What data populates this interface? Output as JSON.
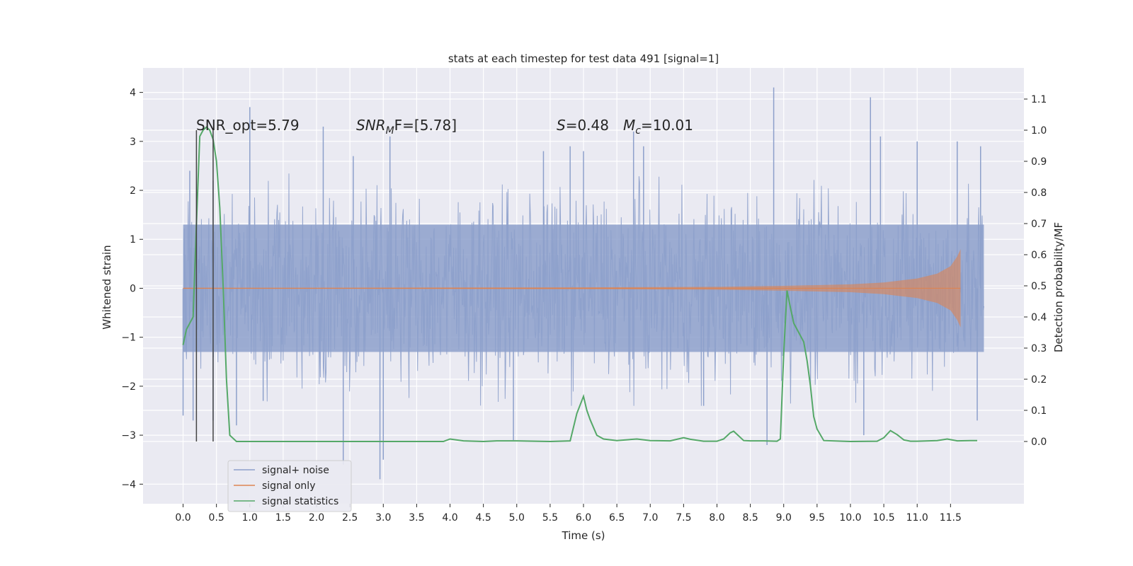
{
  "chart_data": {
    "type": "line",
    "title": "stats at each timestep for test data 491 [signal=1]",
    "xlabel": "Time (s)",
    "ylabel": "Whitened strain",
    "ylabel_right": "Detection probability/MF",
    "xlim": [
      -0.6,
      12.6
    ],
    "ylim": [
      -4.4,
      4.5
    ],
    "ylim_right": [
      -0.2,
      1.2
    ],
    "x_ticks": [
      0.0,
      0.5,
      1.0,
      1.5,
      2.0,
      2.5,
      3.0,
      3.5,
      4.0,
      4.5,
      5.0,
      5.5,
      6.0,
      6.5,
      7.0,
      7.5,
      8.0,
      8.5,
      9.0,
      9.5,
      10.0,
      10.5,
      11.0,
      11.5
    ],
    "x_tick_labels": [
      "0.0",
      "0.5",
      "1.0",
      "1.5",
      "2.0",
      "2.5",
      "3.0",
      "3.5",
      "4.0",
      "4.5",
      "5.0",
      "5.5",
      "6.0",
      "6.5",
      "7.0",
      "7.5",
      "8.0",
      "8.5",
      "9.0",
      "9.5",
      "10.0",
      "10.5",
      "11.0",
      "11.5"
    ],
    "y_ticks": [
      -4,
      -3,
      -2,
      -1,
      0,
      1,
      2,
      3,
      4
    ],
    "y_tick_labels": [
      "−4",
      "−3",
      "−2",
      "−1",
      "0",
      "1",
      "2",
      "3",
      "4"
    ],
    "y_right_ticks": [
      0.0,
      0.1,
      0.2,
      0.3,
      0.4,
      0.5,
      0.6,
      0.7,
      0.8,
      0.9,
      1.0,
      1.1
    ],
    "y_right_tick_labels": [
      "0.0",
      "0.1",
      "0.2",
      "0.3",
      "0.4",
      "0.5",
      "0.6",
      "0.7",
      "0.8",
      "0.9",
      "1.0",
      "1.1"
    ],
    "grid": true,
    "legend_position": "lower-left",
    "noise_band": {
      "x_start": 0.0,
      "x_end": 12.0,
      "typical_amplitude": 1.6
    },
    "noise_spikes": [
      {
        "x": 0.0,
        "y": -2.6
      },
      {
        "x": 0.1,
        "y": 2.4
      },
      {
        "x": 0.15,
        "y": -2.7
      },
      {
        "x": 0.45,
        "y": 2.2
      },
      {
        "x": 0.45,
        "y": -2.7
      },
      {
        "x": 0.8,
        "y": -2.8
      },
      {
        "x": 1.0,
        "y": 3.7
      },
      {
        "x": 1.2,
        "y": -2.3
      },
      {
        "x": 2.1,
        "y": 3.3
      },
      {
        "x": 2.4,
        "y": -3.6
      },
      {
        "x": 2.55,
        "y": 2.7
      },
      {
        "x": 2.95,
        "y": -3.9
      },
      {
        "x": 3.0,
        "y": -3.5
      },
      {
        "x": 3.1,
        "y": 3.1
      },
      {
        "x": 4.95,
        "y": -3.1
      },
      {
        "x": 5.4,
        "y": 2.8
      },
      {
        "x": 5.8,
        "y": 2.9
      },
      {
        "x": 6.0,
        "y": 2.8
      },
      {
        "x": 6.75,
        "y": 3.2
      },
      {
        "x": 6.9,
        "y": 2.9
      },
      {
        "x": 7.8,
        "y": -2.4
      },
      {
        "x": 8.75,
        "y": -3.2
      },
      {
        "x": 8.85,
        "y": 4.1
      },
      {
        "x": 10.3,
        "y": 3.9
      },
      {
        "x": 10.2,
        "y": -3.0
      },
      {
        "x": 10.45,
        "y": 3.1
      },
      {
        "x": 11.0,
        "y": 3.0
      },
      {
        "x": 11.6,
        "y": 3.0
      },
      {
        "x": 11.9,
        "y": -2.7
      },
      {
        "x": 11.95,
        "y": 2.9
      }
    ],
    "chirp_envelope": {
      "x": [
        0.0,
        2.0,
        4.0,
        6.0,
        8.0,
        9.0,
        10.0,
        10.5,
        11.0,
        11.3,
        11.5,
        11.6,
        11.65
      ],
      "amplitude": [
        0.01,
        0.01,
        0.015,
        0.02,
        0.03,
        0.05,
        0.08,
        0.12,
        0.2,
        0.3,
        0.45,
        0.65,
        0.8
      ]
    },
    "series": [
      {
        "name": "signal+ noise",
        "color": "#8da0cb",
        "axis": "left"
      },
      {
        "name": "signal only",
        "color": "#dd8452",
        "axis": "left"
      },
      {
        "name": "signal statistics",
        "color": "#55a868",
        "axis": "right",
        "x": [
          0.0,
          0.05,
          0.1,
          0.15,
          0.2,
          0.25,
          0.3,
          0.35,
          0.4,
          0.45,
          0.5,
          0.55,
          0.6,
          0.65,
          0.7,
          0.8,
          1.0,
          2.0,
          3.0,
          3.5,
          3.9,
          4.0,
          4.2,
          4.5,
          4.7,
          5.0,
          5.5,
          5.8,
          5.9,
          6.0,
          6.05,
          6.1,
          6.2,
          6.3,
          6.5,
          6.8,
          7.0,
          7.3,
          7.5,
          7.6,
          7.8,
          8.0,
          8.1,
          8.2,
          8.25,
          8.4,
          8.5,
          8.7,
          8.9,
          8.95,
          9.0,
          9.05,
          9.1,
          9.15,
          9.2,
          9.3,
          9.35,
          9.4,
          9.45,
          9.5,
          9.6,
          10.0,
          10.4,
          10.5,
          10.6,
          10.7,
          10.8,
          10.9,
          11.0,
          11.3,
          11.45,
          11.6,
          11.8,
          11.9
        ],
        "values": [
          0.31,
          0.36,
          0.38,
          0.4,
          0.7,
          0.98,
          1.0,
          1.01,
          1.0,
          0.97,
          0.9,
          0.75,
          0.5,
          0.2,
          0.02,
          0.0,
          0.0,
          0.0,
          0.0,
          0.0,
          0.0,
          0.008,
          0.002,
          0.0,
          0.002,
          0.002,
          0.0,
          0.002,
          0.09,
          0.145,
          0.1,
          0.07,
          0.02,
          0.008,
          0.003,
          0.008,
          0.003,
          0.002,
          0.012,
          0.007,
          0.001,
          0.001,
          0.008,
          0.028,
          0.033,
          0.003,
          0.002,
          0.002,
          0.001,
          0.008,
          0.28,
          0.485,
          0.43,
          0.38,
          0.36,
          0.32,
          0.26,
          0.18,
          0.08,
          0.04,
          0.003,
          0.0,
          0.001,
          0.012,
          0.035,
          0.022,
          0.005,
          0.001,
          0.001,
          0.003,
          0.008,
          0.002,
          0.003,
          0.003
        ]
      }
    ],
    "vertical_lines": [
      {
        "x": 0.2,
        "y_top_right": 1.0,
        "color": "#444444"
      },
      {
        "x": 0.45,
        "y_top_right": 1.0,
        "color": "#444444"
      }
    ],
    "annotations": [
      {
        "text": "SNR_opt=5.79",
        "x": 0.2,
        "y": 3.1
      },
      {
        "text_main": "SNR",
        "text_sub": "M",
        "text_rest": "F=[5.78]",
        "x": 2.6,
        "y": 3.1
      },
      {
        "text_main": "S",
        "text_rest": "=0.48",
        "x": 5.6,
        "y": 3.1
      },
      {
        "text_main": "M",
        "text_sub": "c",
        "text_rest": "=10.01",
        "x": 6.6,
        "y": 3.1
      }
    ]
  }
}
